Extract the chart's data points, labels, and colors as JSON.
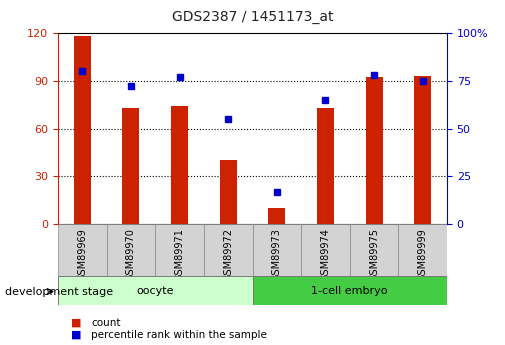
{
  "title": "GDS2387 / 1451173_at",
  "samples": [
    "GSM89969",
    "GSM89970",
    "GSM89971",
    "GSM89972",
    "GSM89973",
    "GSM89974",
    "GSM89975",
    "GSM89999"
  ],
  "counts": [
    118,
    73,
    74,
    40,
    10,
    73,
    92,
    93
  ],
  "percentile_ranks": [
    80,
    72,
    77,
    55,
    17,
    65,
    78,
    75
  ],
  "ylim_left": [
    0,
    120
  ],
  "ylim_right": [
    0,
    100
  ],
  "yticks_left": [
    0,
    30,
    60,
    90,
    120
  ],
  "yticks_right": [
    0,
    25,
    50,
    75,
    100
  ],
  "bar_color": "#cc2200",
  "dot_color": "#0000cc",
  "bar_width": 0.35,
  "grid_color": "#000000",
  "axis_color_left": "#cc2200",
  "axis_color_right": "#0000cc",
  "bg_color": "#ffffff",
  "tick_bg_color": "#d3d3d3",
  "oocyte_color": "#ccffcc",
  "embryo_color": "#44cc44",
  "dev_stage_label": "development stage",
  "legend_count_label": "count",
  "legend_pct_label": "percentile rank within the sample",
  "oocyte_label": "oocyte",
  "embryo_label": "1-cell embryo"
}
